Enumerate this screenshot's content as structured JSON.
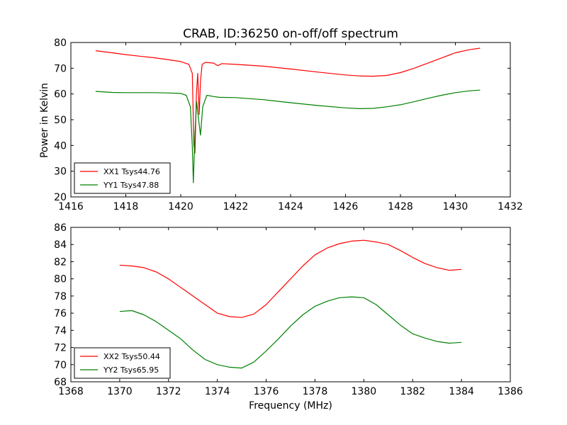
{
  "chart_data": [
    {
      "type": "line",
      "title": "CRAB, ID:36250 on-off/off spectrum",
      "xlabel": "",
      "ylabel": "Power in Kelvin",
      "xlim": [
        1416,
        1432
      ],
      "ylim": [
        20,
        80
      ],
      "xticks": [
        1416,
        1418,
        1420,
        1422,
        1424,
        1426,
        1428,
        1430,
        1432
      ],
      "yticks": [
        20,
        30,
        40,
        50,
        60,
        70,
        80
      ],
      "legend_position": "lower-left",
      "grid": false,
      "series": [
        {
          "name": "XX1 Tsys44.76",
          "color": "#ff0000",
          "x": [
            1416.9,
            1417.5,
            1418.0,
            1418.5,
            1419.0,
            1419.5,
            1420.0,
            1420.3,
            1420.42,
            1420.48,
            1420.52,
            1420.57,
            1420.62,
            1420.67,
            1420.72,
            1420.78,
            1420.9,
            1421.2,
            1421.35,
            1421.5,
            1422.0,
            1423.0,
            1424.0,
            1425.0,
            1426.0,
            1426.5,
            1427.0,
            1427.5,
            1428.0,
            1428.5,
            1429.0,
            1429.5,
            1430.0,
            1430.5,
            1430.9
          ],
          "y": [
            76.8,
            76.0,
            75.3,
            74.7,
            74.1,
            73.4,
            72.6,
            71.5,
            68.0,
            40.0,
            37.0,
            60.0,
            68.0,
            52.0,
            65.0,
            71.5,
            72.3,
            72.0,
            71.0,
            71.8,
            71.5,
            70.8,
            69.7,
            68.5,
            67.4,
            67.0,
            66.9,
            67.2,
            68.3,
            70.0,
            72.0,
            74.0,
            76.0,
            77.2,
            77.8
          ]
        },
        {
          "name": "YY1 Tsys47.88",
          "color": "#008000",
          "x": [
            1416.9,
            1417.5,
            1418.0,
            1418.5,
            1419.0,
            1419.5,
            1420.0,
            1420.2,
            1420.35,
            1420.42,
            1420.46,
            1420.52,
            1420.58,
            1420.65,
            1420.72,
            1420.8,
            1420.95,
            1421.2,
            1421.4,
            1422.0,
            1423.0,
            1424.0,
            1425.0,
            1426.0,
            1426.5,
            1427.0,
            1427.5,
            1428.0,
            1428.5,
            1429.0,
            1429.5,
            1430.0,
            1430.5,
            1430.9
          ],
          "y": [
            61.0,
            60.6,
            60.5,
            60.5,
            60.5,
            60.4,
            60.2,
            59.5,
            55.0,
            40.0,
            25.5,
            45.0,
            57.0,
            50.0,
            44.0,
            55.0,
            59.5,
            59.0,
            58.7,
            58.6,
            57.8,
            56.6,
            55.5,
            54.6,
            54.3,
            54.4,
            55.0,
            55.8,
            57.0,
            58.3,
            59.5,
            60.5,
            61.2,
            61.5
          ]
        }
      ]
    },
    {
      "type": "line",
      "title": "",
      "xlabel": "Frequency (MHz)",
      "ylabel": "",
      "xlim": [
        1368,
        1386
      ],
      "ylim": [
        68,
        86
      ],
      "xticks": [
        1368,
        1370,
        1372,
        1374,
        1376,
        1378,
        1380,
        1382,
        1384,
        1386
      ],
      "yticks": [
        68,
        70,
        72,
        74,
        76,
        78,
        80,
        82,
        84,
        86
      ],
      "legend_position": "lower-left",
      "grid": false,
      "series": [
        {
          "name": "XX2 Tsys50.44",
          "color": "#ff0000",
          "x": [
            1370.0,
            1370.5,
            1371.0,
            1371.5,
            1372.0,
            1372.5,
            1373.0,
            1373.5,
            1374.0,
            1374.5,
            1375.0,
            1375.5,
            1376.0,
            1376.5,
            1377.0,
            1377.5,
            1378.0,
            1378.5,
            1379.0,
            1379.5,
            1380.0,
            1380.5,
            1381.0,
            1381.5,
            1382.0,
            1382.5,
            1383.0,
            1383.5,
            1384.0
          ],
          "y": [
            81.6,
            81.5,
            81.3,
            80.8,
            80.0,
            79.0,
            78.0,
            77.0,
            76.0,
            75.6,
            75.5,
            75.9,
            77.0,
            78.5,
            80.0,
            81.5,
            82.8,
            83.6,
            84.1,
            84.4,
            84.5,
            84.3,
            84.0,
            83.3,
            82.5,
            81.8,
            81.3,
            81.0,
            81.1
          ]
        },
        {
          "name": "YY2 Tsys65.95",
          "color": "#008000",
          "x": [
            1370.0,
            1370.5,
            1371.0,
            1371.5,
            1372.0,
            1372.5,
            1373.0,
            1373.5,
            1374.0,
            1374.5,
            1375.0,
            1375.5,
            1376.0,
            1376.5,
            1377.0,
            1377.5,
            1378.0,
            1378.5,
            1379.0,
            1379.5,
            1380.0,
            1380.5,
            1381.0,
            1381.5,
            1382.0,
            1382.5,
            1383.0,
            1383.5,
            1384.0
          ],
          "y": [
            76.2,
            76.3,
            75.8,
            75.0,
            74.0,
            73.0,
            71.7,
            70.6,
            70.0,
            69.7,
            69.6,
            70.3,
            71.6,
            73.0,
            74.5,
            75.8,
            76.8,
            77.4,
            77.8,
            77.9,
            77.8,
            77.0,
            75.8,
            74.6,
            73.6,
            73.1,
            72.7,
            72.5,
            72.6
          ]
        }
      ]
    }
  ]
}
